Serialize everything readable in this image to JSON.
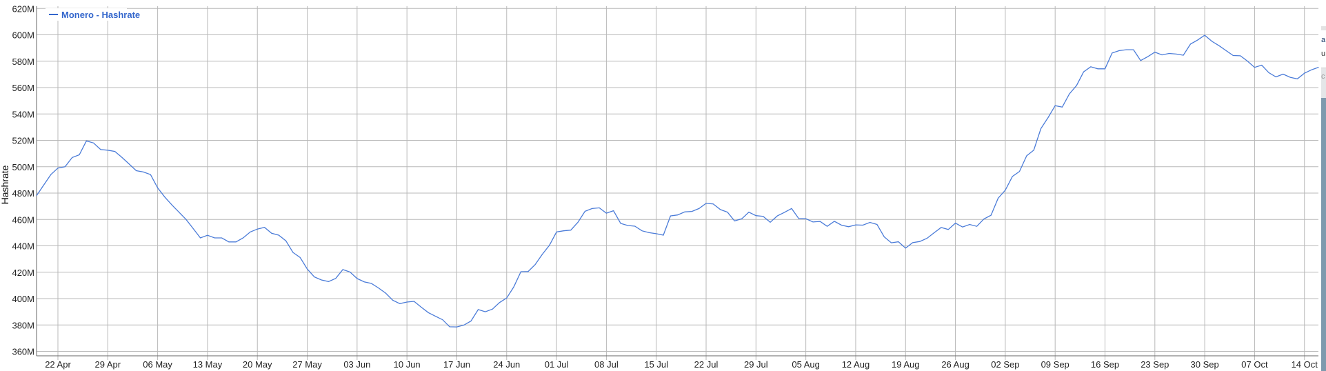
{
  "chart_data": {
    "type": "line",
    "title": "",
    "xlabel": "",
    "ylabel": "Hashrate",
    "ylim": [
      360,
      620
    ],
    "y_unit_suffix": "M",
    "y_ticks": [
      "360M",
      "380M",
      "400M",
      "420M",
      "440M",
      "460M",
      "480M",
      "500M",
      "520M",
      "540M",
      "560M",
      "580M",
      "600M",
      "620M"
    ],
    "x_ticks": [
      "22 Apr",
      "29 Apr",
      "06 May",
      "13 May",
      "20 May",
      "27 May",
      "03 Jun",
      "10 Jun",
      "17 Jun",
      "24 Jun",
      "01 Jul",
      "08 Jul",
      "15 Jul",
      "22 Jul",
      "29 Jul",
      "05 Aug",
      "12 Aug",
      "19 Aug",
      "26 Aug",
      "02 Sep",
      "09 Sep",
      "16 Sep",
      "23 Sep",
      "30 Sep",
      "07 Oct",
      "14 Oct"
    ],
    "grid": true,
    "legend": {
      "position": "top-left",
      "entries": [
        "Monero - Hashrate"
      ]
    },
    "colors": {
      "line": "#4a7bd8",
      "legend_text": "#3366cc",
      "grid": "#b8b8b8",
      "axis": "#666666"
    },
    "series": [
      {
        "name": "Monero - Hashrate",
        "x": [
          "19 Apr",
          "20 Apr",
          "21 Apr",
          "22 Apr",
          "23 Apr",
          "24 Apr",
          "25 Apr",
          "26 Apr",
          "27 Apr",
          "28 Apr",
          "29 Apr",
          "30 Apr",
          "01 May",
          "02 May",
          "03 May",
          "04 May",
          "05 May",
          "06 May",
          "07 May",
          "08 May",
          "09 May",
          "10 May",
          "11 May",
          "12 May",
          "13 May",
          "14 May",
          "15 May",
          "16 May",
          "17 May",
          "18 May",
          "19 May",
          "20 May",
          "21 May",
          "22 May",
          "23 May",
          "24 May",
          "25 May",
          "26 May",
          "27 May",
          "28 May",
          "29 May",
          "30 May",
          "31 May",
          "01 Jun",
          "02 Jun",
          "03 Jun",
          "04 Jun",
          "05 Jun",
          "06 Jun",
          "07 Jun",
          "08 Jun",
          "09 Jun",
          "10 Jun",
          "11 Jun",
          "12 Jun",
          "13 Jun",
          "14 Jun",
          "15 Jun",
          "16 Jun",
          "17 Jun",
          "18 Jun",
          "19 Jun",
          "20 Jun",
          "21 Jun",
          "22 Jun",
          "23 Jun",
          "24 Jun",
          "25 Jun",
          "26 Jun",
          "27 Jun",
          "28 Jun",
          "29 Jun",
          "30 Jun",
          "01 Jul",
          "02 Jul",
          "03 Jul",
          "04 Jul",
          "05 Jul",
          "06 Jul",
          "07 Jul",
          "08 Jul",
          "09 Jul",
          "10 Jul",
          "11 Jul",
          "12 Jul",
          "13 Jul",
          "14 Jul",
          "15 Jul",
          "16 Jul",
          "17 Jul",
          "18 Jul",
          "19 Jul",
          "20 Jul",
          "21 Jul",
          "22 Jul",
          "23 Jul",
          "24 Jul",
          "25 Jul",
          "26 Jul",
          "27 Jul",
          "28 Jul",
          "29 Jul",
          "30 Jul",
          "31 Jul",
          "01 Aug",
          "02 Aug",
          "03 Aug",
          "04 Aug",
          "05 Aug",
          "06 Aug",
          "07 Aug",
          "08 Aug",
          "09 Aug",
          "10 Aug",
          "11 Aug",
          "12 Aug",
          "13 Aug",
          "14 Aug",
          "15 Aug",
          "16 Aug",
          "17 Aug",
          "18 Aug",
          "19 Aug",
          "20 Aug",
          "21 Aug",
          "22 Aug",
          "23 Aug",
          "24 Aug",
          "25 Aug",
          "26 Aug",
          "27 Aug",
          "28 Aug",
          "29 Aug",
          "30 Aug",
          "31 Aug",
          "01 Sep",
          "02 Sep",
          "03 Sep",
          "04 Sep",
          "05 Sep",
          "06 Sep",
          "07 Sep",
          "08 Sep",
          "09 Sep",
          "10 Sep",
          "11 Sep",
          "12 Sep",
          "13 Sep",
          "14 Sep",
          "15 Sep",
          "16 Sep",
          "17 Sep",
          "18 Sep",
          "19 Sep",
          "20 Sep",
          "21 Sep",
          "22 Sep",
          "23 Sep",
          "24 Sep",
          "25 Sep",
          "26 Sep",
          "27 Sep",
          "28 Sep",
          "29 Sep",
          "30 Sep",
          "01 Oct",
          "02 Oct",
          "03 Oct",
          "04 Oct",
          "05 Oct",
          "06 Oct",
          "07 Oct",
          "08 Oct",
          "09 Oct",
          "10 Oct",
          "11 Oct",
          "12 Oct",
          "13 Oct",
          "14 Oct",
          "15 Oct",
          "16 Oct"
        ],
        "values": [
          478,
          486,
          494,
          499,
          500,
          507,
          509,
          519.6,
          518,
          513,
          512.5,
          511.6,
          507,
          502,
          497,
          496,
          494,
          484,
          477,
          471,
          465.5,
          460,
          453,
          446,
          448,
          446,
          446,
          443,
          443,
          446,
          450.5,
          452.7,
          454,
          449.5,
          448.1,
          443.8,
          435,
          431.2,
          422.5,
          416.4,
          414.1,
          412.9,
          415.3,
          422,
          420.2,
          415.2,
          412.7,
          411.5,
          408.1,
          404.2,
          398.8,
          396.2,
          397.4,
          397.9,
          393.5,
          389.4,
          386.6,
          384,
          378.6,
          378.5,
          379.9,
          383,
          391.7,
          390,
          392,
          397,
          400.4,
          408.9,
          420.4,
          420.5,
          425.8,
          433.5,
          440.4,
          450.5,
          451.4,
          451.9,
          457.9,
          466.2,
          468.3,
          468.8,
          464.8,
          466.6,
          457,
          455.4,
          454.9,
          451.4,
          450,
          449.2,
          448.1,
          462.7,
          463.4,
          465.7,
          466.1,
          468.3,
          472.2,
          471.8,
          467.5,
          465.5,
          458.9,
          460.5,
          465.5,
          462.9,
          462.4,
          457.9,
          462.7,
          465.4,
          468.3,
          460.7,
          460.6,
          458.1,
          458.5,
          454.8,
          458.6,
          455.7,
          454.5,
          455.9,
          455.7,
          457.8,
          456.2,
          446.8,
          442.3,
          443.1,
          438.3,
          442.4,
          443.3,
          445.7,
          449.9,
          453.9,
          452.4,
          457.2,
          454.3,
          456.2,
          454.8,
          460.4,
          463.2,
          476.1,
          482.2,
          492.6,
          496.4,
          508.3,
          512.6,
          528.9,
          537.2,
          546.3,
          545.2,
          555.2,
          561.5,
          571.9,
          575.8,
          574.2,
          574.2,
          586.2,
          588,
          588.7,
          588.7,
          580.5,
          583.4,
          586.9,
          584.8,
          585.9,
          585.4,
          584.5,
          593,
          596,
          599.7,
          595.1,
          591.8,
          588,
          584.3,
          584.1,
          580.1,
          575.3,
          577,
          571.3,
          568.1,
          570.2,
          567.8,
          566.6,
          570.9,
          573.5,
          575.4
        ]
      }
    ]
  },
  "side_panel": {
    "text_1": "a",
    "text_2": "u",
    "box_text": "c"
  }
}
